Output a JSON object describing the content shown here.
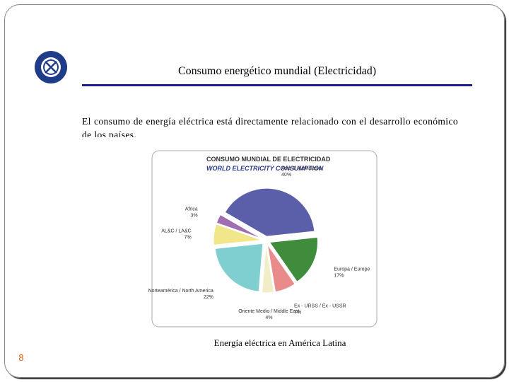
{
  "slide": {
    "title": "Consumo energético mundial (Electricidad)",
    "body": "El consumo de energía eléctrica está directamente relacionado con el desarrollo económico de los países.",
    "caption": "Energía eléctrica en América Latina",
    "page_number": "8"
  },
  "chart_data": {
    "type": "pie",
    "title": "CONSUMO MUNDIAL DE ELECTRICIDAD",
    "subtitle": "WORLD ELECTRICITY CONSUMPTION",
    "categories": [
      "Asia & Australasia",
      "Europa / Europe",
      "Ex - URSS / Ex - USSR",
      "Oriente Medio / Middle East",
      "Norteamérica / North America",
      "AL&C / LA&C",
      "Africa"
    ],
    "values": [
      40,
      17,
      7,
      4,
      22,
      7,
      3
    ],
    "value_labels": [
      "40%",
      "17%",
      "7%",
      "4%",
      "22%",
      "7%",
      "3%"
    ],
    "colors": [
      "#5b5fa9",
      "#3f8c3c",
      "#e98b8b",
      "#f1edc6",
      "#7fcfd1",
      "#f1e78a",
      "#9f6fb1"
    ]
  }
}
